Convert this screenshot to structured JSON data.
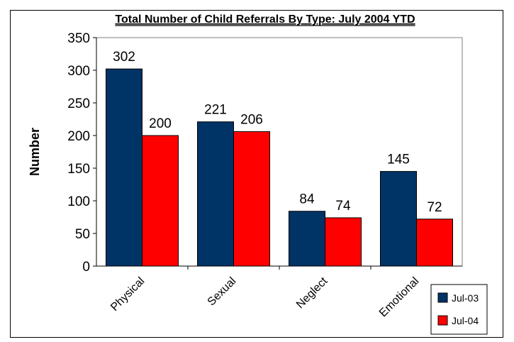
{
  "chart_data": {
    "type": "bar",
    "title": "Total Number of Child Referrals By Type: July 2004 YTD",
    "xlabel": "",
    "ylabel": "Number",
    "categories": [
      "Physical",
      "Sexual",
      "Neglect",
      "Emotional"
    ],
    "series": [
      {
        "name": "Jul-03",
        "color": "#003366",
        "values": [
          302,
          221,
          84,
          145
        ]
      },
      {
        "name": "Jul-04",
        "color": "#ff0000",
        "values": [
          200,
          206,
          74,
          72
        ]
      }
    ],
    "ylim": [
      0,
      350
    ],
    "yticks": [
      0,
      50,
      100,
      150,
      200,
      250,
      300,
      350
    ],
    "grid": false,
    "legend_position": "bottom-right",
    "data_labels": true,
    "plot_background": "#ffffff",
    "plot_border_color": "#808080"
  }
}
